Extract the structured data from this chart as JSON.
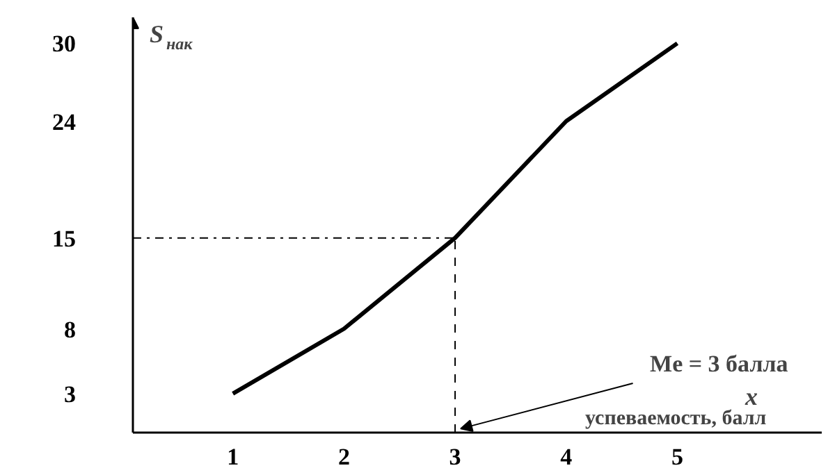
{
  "chart_data": {
    "type": "line",
    "ylabel": "S$_{нак}$",
    "xlabel": "x",
    "x": [
      1,
      2,
      3,
      4,
      5
    ],
    "series": [
      {
        "color": "#000000",
        "values": [
          3,
          8,
          15,
          24,
          30
        ]
      }
    ],
    "xlim": [
      0.1,
      6.3
    ],
    "xticks": [
      1,
      2,
      3,
      4,
      5
    ],
    "ylim": [
      0,
      32
    ],
    "yticks": [
      3,
      8,
      15,
      24,
      30
    ],
    "ref_lines": [
      {
        "axis": "y",
        "value": 15,
        "color": "#000000",
        "line_style": "dashdot"
      },
      {
        "axis": "x",
        "value": 3,
        "color": "#000000",
        "line_style": "dashed"
      }
    ],
    "annotations": [
      {
        "text": "Me = 3 балла",
        "x": 3,
        "y": 0
      },
      "успеваемость, балл"
    ],
    "grid": false,
    "marker": "none",
    "line_style": "solid"
  }
}
